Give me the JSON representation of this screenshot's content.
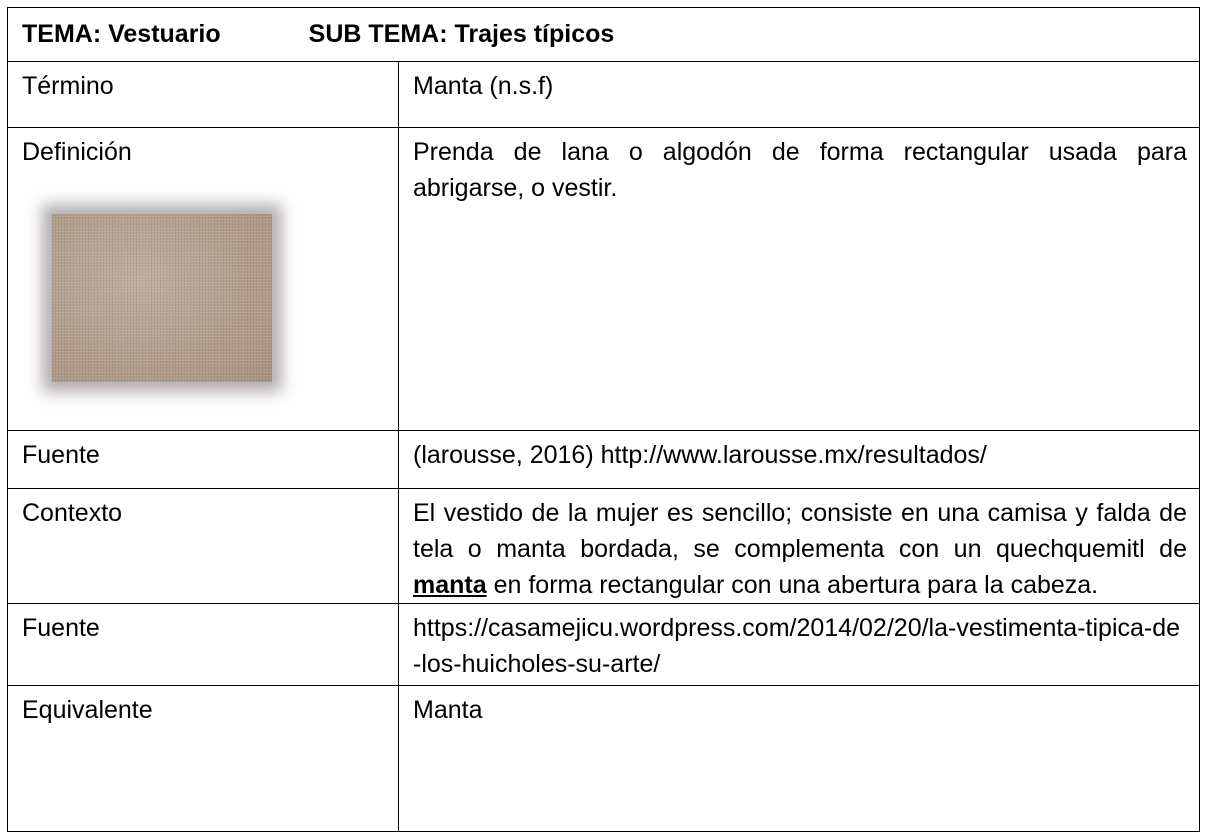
{
  "header": {
    "tema": "TEMA: Vestuario",
    "subtema": "SUB TEMA: Trajes típicos"
  },
  "rows": [
    {
      "label": "Término",
      "value": "Manta (n.s.f)"
    },
    {
      "label": "Definición",
      "value": "Prenda de lana o algodón de forma rectangular usada para abrigarse, o vestir."
    },
    {
      "label": "Fuente",
      "value": "(larousse, 2016) http://www.larousse.mx/resultados/"
    },
    {
      "label": "Contexto",
      "value": [
        "El vestido de la mujer es sencillo; consiste en una camisa y falda de tela o manta bordada, se complementa con un quechquemitl de ",
        "manta",
        " en forma rectangular con una abertura para la cabeza."
      ]
    },
    {
      "label": "Fuente",
      "value": "https://casamejicu.wordpress.com/2014/02/20/la-vestimenta-tipica-de-los-huicholes-su-arte/"
    },
    {
      "label": "Equivalente",
      "value": "Manta"
    }
  ]
}
